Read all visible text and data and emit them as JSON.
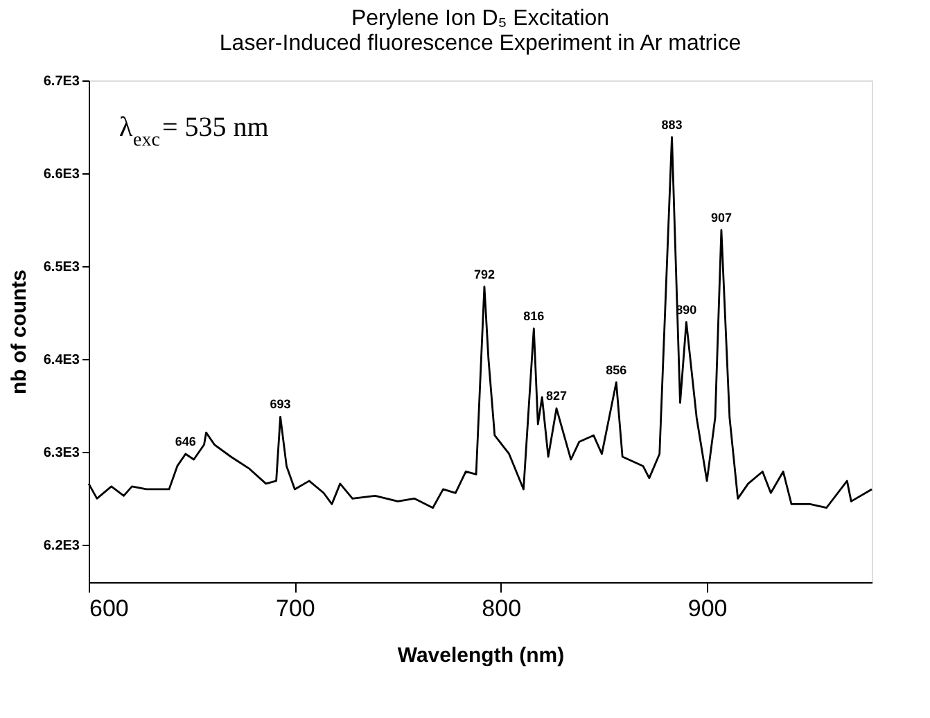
{
  "chart_data": {
    "type": "line",
    "title": "Perylene Ion  D₅ Excitation",
    "subtitle": "Laser-Induced fluorescence Experiment in Ar matrice",
    "xlabel": "Wavelength (nm)",
    "ylabel": "nb of counts",
    "x": [
      600,
      604,
      611,
      617,
      621,
      628,
      639,
      643,
      647,
      651,
      656,
      657,
      661,
      669,
      678,
      686,
      691,
      693,
      696,
      700,
      707,
      714,
      718,
      722,
      728,
      739,
      750,
      758,
      767,
      772,
      778,
      783,
      788,
      792,
      794,
      797,
      804,
      811,
      816,
      818,
      820,
      823,
      827,
      834,
      838,
      845,
      849,
      856,
      859,
      869,
      872,
      877,
      883,
      887,
      890,
      895,
      900,
      904,
      907,
      911,
      915,
      920,
      927,
      931,
      937,
      941,
      950,
      958,
      968,
      970,
      980
    ],
    "series": [
      {
        "color": "#000000",
        "values": [
          6266,
          6250,
          6263,
          6253,
          6263,
          6260,
          6260,
          6285,
          6298,
          6292,
          6308,
          6321,
          6308,
          6295,
          6282,
          6266,
          6269,
          6338,
          6285,
          6260,
          6269,
          6256,
          6244,
          6266,
          6250,
          6253,
          6247,
          6250,
          6240,
          6260,
          6256,
          6279,
          6276,
          6478,
          6400,
          6318,
          6298,
          6260,
          6433,
          6330,
          6359,
          6295,
          6347,
          6292,
          6311,
          6318,
          6298,
          6375,
          6295,
          6285,
          6272,
          6298,
          6639,
          6353,
          6440,
          6337,
          6269,
          6337,
          6539,
          6337,
          6250,
          6266,
          6279,
          6256,
          6279,
          6244,
          6244,
          6240,
          6269,
          6247,
          6260
        ]
      }
    ],
    "xlim": [
      600,
      980
    ],
    "xticks": [
      600,
      700,
      800,
      900
    ],
    "ylim": [
      6160,
      6700
    ],
    "yticks": [
      {
        "value": 6200,
        "label": "6.2E3"
      },
      {
        "value": 6300,
        "label": "6.3E3"
      },
      {
        "value": 6400,
        "label": "6.4E3"
      },
      {
        "value": 6500,
        "label": "6.5E3"
      },
      {
        "value": 6600,
        "label": "6.6E3"
      },
      {
        "value": 6700,
        "label": "6.7E3"
      }
    ],
    "annotations": [
      {
        "text": "646",
        "x": 647,
        "y": 6298
      },
      {
        "text": "693",
        "x": 693,
        "y": 6338
      },
      {
        "text": "792",
        "x": 792,
        "y": 6478
      },
      {
        "text": "816",
        "x": 816,
        "y": 6433
      },
      {
        "text": "827",
        "x": 827,
        "y": 6347
      },
      {
        "text": "856",
        "x": 856,
        "y": 6375
      },
      {
        "text": "883",
        "x": 883,
        "y": 6639
      },
      {
        "text": "890",
        "x": 890,
        "y": 6440
      },
      {
        "text": "907",
        "x": 907,
        "y": 6539
      },
      "λ$_{exc}$= 535  nm"
    ],
    "grid": false,
    "marker": "none",
    "line_style": "solid"
  }
}
